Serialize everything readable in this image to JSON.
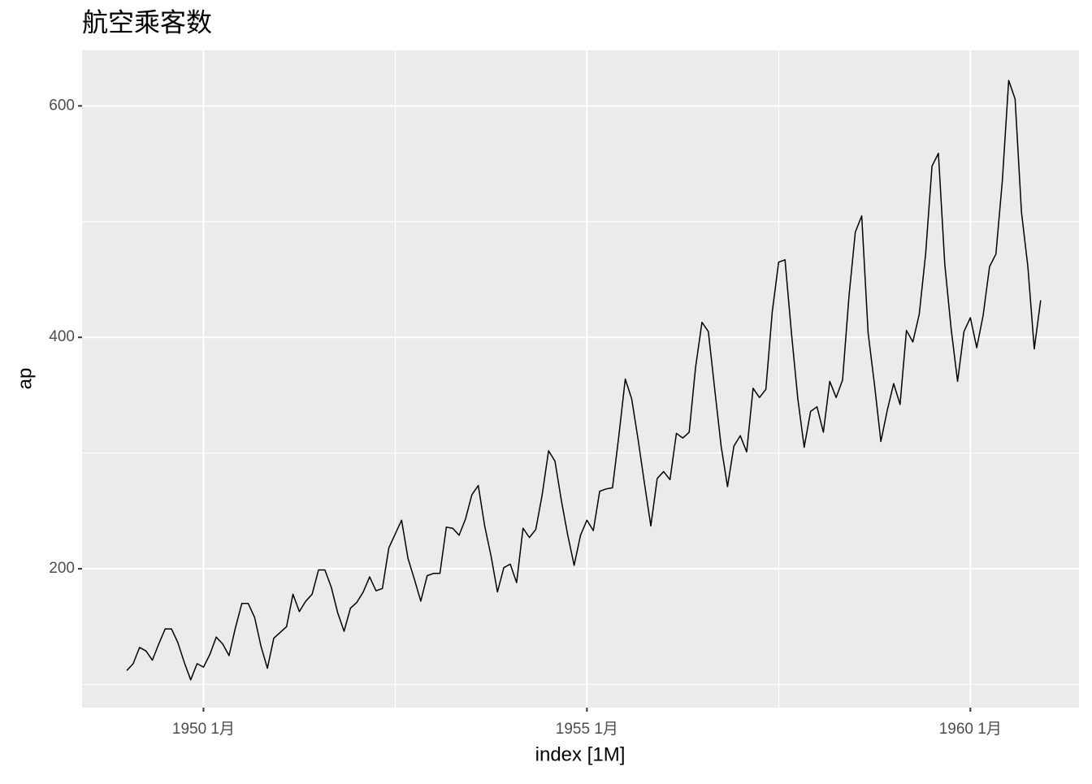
{
  "chart_data": {
    "type": "line",
    "title": "航空乘客数",
    "x_label": "index [1M]",
    "y_label": "ap",
    "x": [
      "1949-01",
      "1949-02",
      "1949-03",
      "1949-04",
      "1949-05",
      "1949-06",
      "1949-07",
      "1949-08",
      "1949-09",
      "1949-10",
      "1949-11",
      "1949-12",
      "1950-01",
      "1950-02",
      "1950-03",
      "1950-04",
      "1950-05",
      "1950-06",
      "1950-07",
      "1950-08",
      "1950-09",
      "1950-10",
      "1950-11",
      "1950-12",
      "1951-01",
      "1951-02",
      "1951-03",
      "1951-04",
      "1951-05",
      "1951-06",
      "1951-07",
      "1951-08",
      "1951-09",
      "1951-10",
      "1951-11",
      "1951-12",
      "1952-01",
      "1952-02",
      "1952-03",
      "1952-04",
      "1952-05",
      "1952-06",
      "1952-07",
      "1952-08",
      "1952-09",
      "1952-10",
      "1952-11",
      "1952-12",
      "1953-01",
      "1953-02",
      "1953-03",
      "1953-04",
      "1953-05",
      "1953-06",
      "1953-07",
      "1953-08",
      "1953-09",
      "1953-10",
      "1953-11",
      "1953-12",
      "1954-01",
      "1954-02",
      "1954-03",
      "1954-04",
      "1954-05",
      "1954-06",
      "1954-07",
      "1954-08",
      "1954-09",
      "1954-10",
      "1954-11",
      "1954-12",
      "1955-01",
      "1955-02",
      "1955-03",
      "1955-04",
      "1955-05",
      "1955-06",
      "1955-07",
      "1955-08",
      "1955-09",
      "1955-10",
      "1955-11",
      "1955-12",
      "1956-01",
      "1956-02",
      "1956-03",
      "1956-04",
      "1956-05",
      "1956-06",
      "1956-07",
      "1956-08",
      "1956-09",
      "1956-10",
      "1956-11",
      "1956-12",
      "1957-01",
      "1957-02",
      "1957-03",
      "1957-04",
      "1957-05",
      "1957-06",
      "1957-07",
      "1957-08",
      "1957-09",
      "1957-10",
      "1957-11",
      "1957-12",
      "1958-01",
      "1958-02",
      "1958-03",
      "1958-04",
      "1958-05",
      "1958-06",
      "1958-07",
      "1958-08",
      "1958-09",
      "1958-10",
      "1958-11",
      "1958-12",
      "1959-01",
      "1959-02",
      "1959-03",
      "1959-04",
      "1959-05",
      "1959-06",
      "1959-07",
      "1959-08",
      "1959-09",
      "1959-10",
      "1959-11",
      "1959-12",
      "1960-01",
      "1960-02",
      "1960-03",
      "1960-04",
      "1960-05",
      "1960-06",
      "1960-07",
      "1960-08",
      "1960-09",
      "1960-10",
      "1960-11",
      "1960-12"
    ],
    "values": [
      112,
      118,
      132,
      129,
      121,
      135,
      148,
      148,
      136,
      119,
      104,
      118,
      115,
      126,
      141,
      135,
      125,
      149,
      170,
      170,
      158,
      133,
      114,
      140,
      145,
      150,
      178,
      163,
      172,
      178,
      199,
      199,
      184,
      162,
      146,
      166,
      171,
      180,
      193,
      181,
      183,
      218,
      230,
      242,
      209,
      191,
      172,
      194,
      196,
      196,
      236,
      235,
      229,
      243,
      264,
      272,
      237,
      211,
      180,
      201,
      204,
      188,
      235,
      227,
      234,
      264,
      302,
      293,
      259,
      229,
      203,
      229,
      242,
      233,
      267,
      269,
      270,
      315,
      364,
      347,
      312,
      274,
      237,
      278,
      284,
      277,
      317,
      313,
      318,
      374,
      413,
      405,
      355,
      306,
      271,
      306,
      315,
      301,
      356,
      348,
      355,
      422,
      465,
      467,
      404,
      347,
      305,
      336,
      340,
      318,
      362,
      348,
      363,
      435,
      491,
      505,
      404,
      359,
      310,
      337,
      360,
      342,
      406,
      396,
      420,
      472,
      548,
      559,
      463,
      407,
      362,
      405,
      417,
      391,
      419,
      461,
      472,
      535,
      622,
      606,
      508,
      461,
      390,
      432
    ],
    "color": "#000000",
    "xlim": [
      "1948-06",
      "1961-06"
    ],
    "xticks": [
      {
        "value": "1950-01",
        "label": "1950 1月"
      },
      {
        "value": "1955-01",
        "label": "1955 1月"
      },
      {
        "value": "1960-01",
        "label": "1960 1月"
      }
    ],
    "x_minor_ticks": [
      "1952-07",
      "1957-07"
    ],
    "ylim": [
      80,
      648
    ],
    "yticks": [
      200,
      400,
      600
    ],
    "y_minor_ticks": [
      100,
      300,
      500
    ],
    "grid": true
  }
}
